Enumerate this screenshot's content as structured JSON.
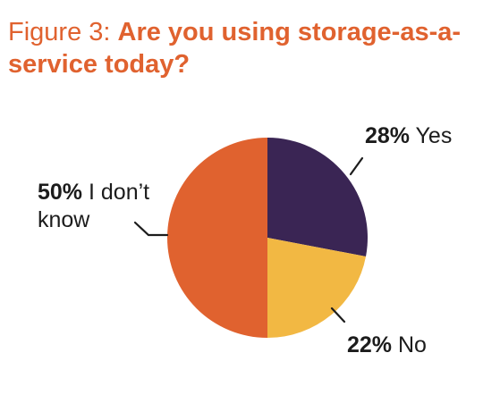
{
  "title": {
    "prefix": "Figure 3: ",
    "main": "Are you using storage-as-a-service today?"
  },
  "colors": {
    "title": "#e0622f",
    "yes": "#3a2554",
    "no": "#f2b843",
    "dont_know": "#e0622f"
  },
  "chart_data": {
    "type": "pie",
    "title": "Are you using storage-as-a-service today?",
    "categories": [
      "Yes",
      "No",
      "I don’t know"
    ],
    "values": [
      28,
      22,
      50
    ],
    "unit": "%",
    "slices": [
      {
        "label": "Yes",
        "value": 28,
        "pct_text": "28%",
        "color": "#3a2554"
      },
      {
        "label": "No",
        "value": 22,
        "pct_text": "22%",
        "color": "#f2b843"
      },
      {
        "label": "I don’t know",
        "value": 50,
        "pct_text": "50%",
        "color": "#e0622f"
      }
    ],
    "legend": "none"
  }
}
